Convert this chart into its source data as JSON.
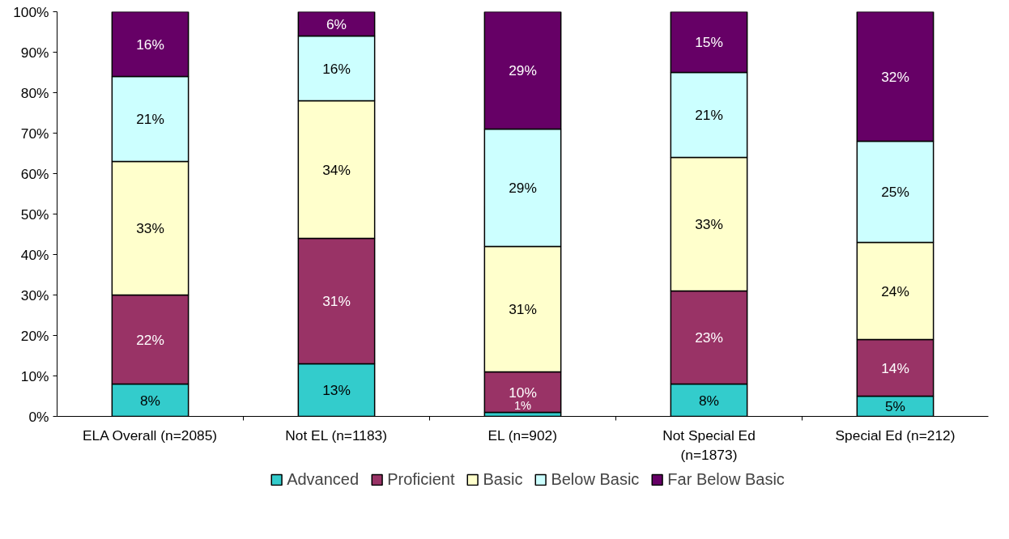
{
  "chart_data": {
    "type": "bar",
    "stacked": true,
    "categories": [
      "ELA Overall (n=2085)",
      "Not EL (n=1183)",
      "EL (n=902)",
      "Not Special Ed\n(n=1873)",
      "Special Ed (n=212)"
    ],
    "series": [
      {
        "name": "Advanced",
        "color": "#33cccc",
        "values": [
          8,
          13,
          1,
          8,
          5
        ],
        "value_labels": [
          "8%",
          "13%",
          "1%",
          "8%",
          "5%"
        ]
      },
      {
        "name": "Proficient",
        "color": "#993366",
        "values": [
          22,
          31,
          10,
          23,
          14
        ],
        "value_labels": [
          "22%",
          "31%",
          "10%",
          "23%",
          "14%"
        ]
      },
      {
        "name": "Basic",
        "color": "#ffffcc",
        "values": [
          33,
          34,
          31,
          33,
          24
        ],
        "value_labels": [
          "33%",
          "34%",
          "31%",
          "33%",
          "24%"
        ]
      },
      {
        "name": "Below Basic",
        "color": "#ccffff",
        "values": [
          21,
          16,
          29,
          21,
          25
        ],
        "value_labels": [
          "21%",
          "16%",
          "29%",
          "21%",
          "25%"
        ]
      },
      {
        "name": "Far Below Basic",
        "color": "#660066",
        "values": [
          16,
          6,
          29,
          15,
          32
        ],
        "value_labels": [
          "16%",
          "6%",
          "29%",
          "15%",
          "32%"
        ]
      }
    ],
    "ylim": [
      0,
      100
    ],
    "yticks": [
      {
        "value": 0,
        "label": "0%"
      },
      {
        "value": 10,
        "label": "10%"
      },
      {
        "value": 20,
        "label": "20%"
      },
      {
        "value": 30,
        "label": "30%"
      },
      {
        "value": 40,
        "label": "40%"
      },
      {
        "value": 50,
        "label": "50%"
      },
      {
        "value": 60,
        "label": "60%"
      },
      {
        "value": 70,
        "label": "70%"
      },
      {
        "value": 80,
        "label": "80%"
      },
      {
        "value": 90,
        "label": "90%"
      },
      {
        "value": 100,
        "label": "100%"
      }
    ],
    "grid": false,
    "legend": "bottom"
  }
}
